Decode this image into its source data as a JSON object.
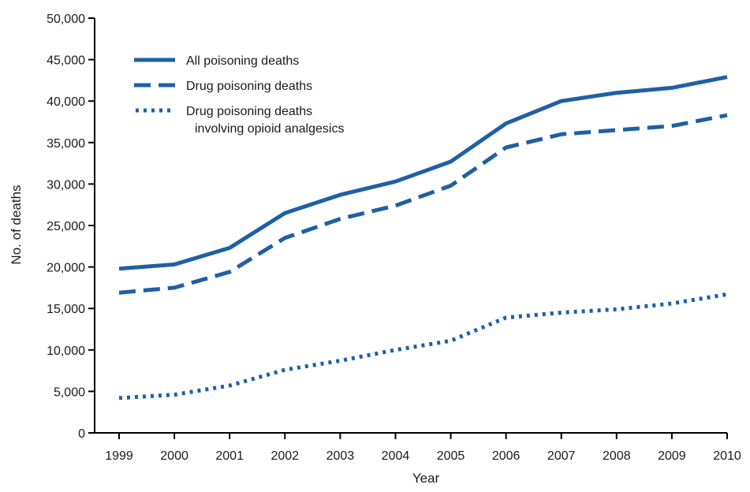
{
  "chart_data": {
    "type": "line",
    "xlabel": "Year",
    "ylabel": "No. of deaths",
    "x": [
      "1999",
      "2000",
      "2001",
      "2002",
      "2003",
      "2004",
      "2005",
      "2006",
      "2007",
      "2008",
      "2009",
      "2010"
    ],
    "ylim": [
      0,
      50000
    ],
    "yticks": [
      "0",
      "5,000",
      "10,000",
      "15,000",
      "20,000",
      "25,000",
      "30,000",
      "35,000",
      "40,000",
      "45,000",
      "50,000"
    ],
    "legend_position": "top-left",
    "series": [
      {
        "name": "All poisoning deaths",
        "style": "solid",
        "color": "#1f5fa5",
        "values": [
          19800,
          20300,
          22300,
          26500,
          28700,
          30300,
          32700,
          37300,
          40000,
          41000,
          41600,
          42900
        ]
      },
      {
        "name": "Drug poisoning deaths",
        "style": "dashed",
        "color": "#1f5fa5",
        "values": [
          16900,
          17500,
          19400,
          23500,
          25800,
          27400,
          29800,
          34400,
          36000,
          36500,
          37000,
          38300
        ]
      },
      {
        "name_line1": "Drug poisoning deaths",
        "name_line2": "involving opioid analgesics",
        "style": "dotted",
        "color": "#1f5fa5",
        "values": [
          4200,
          4600,
          5700,
          7600,
          8700,
          10000,
          11100,
          13900,
          14500,
          14900,
          15600,
          16700
        ]
      }
    ]
  }
}
